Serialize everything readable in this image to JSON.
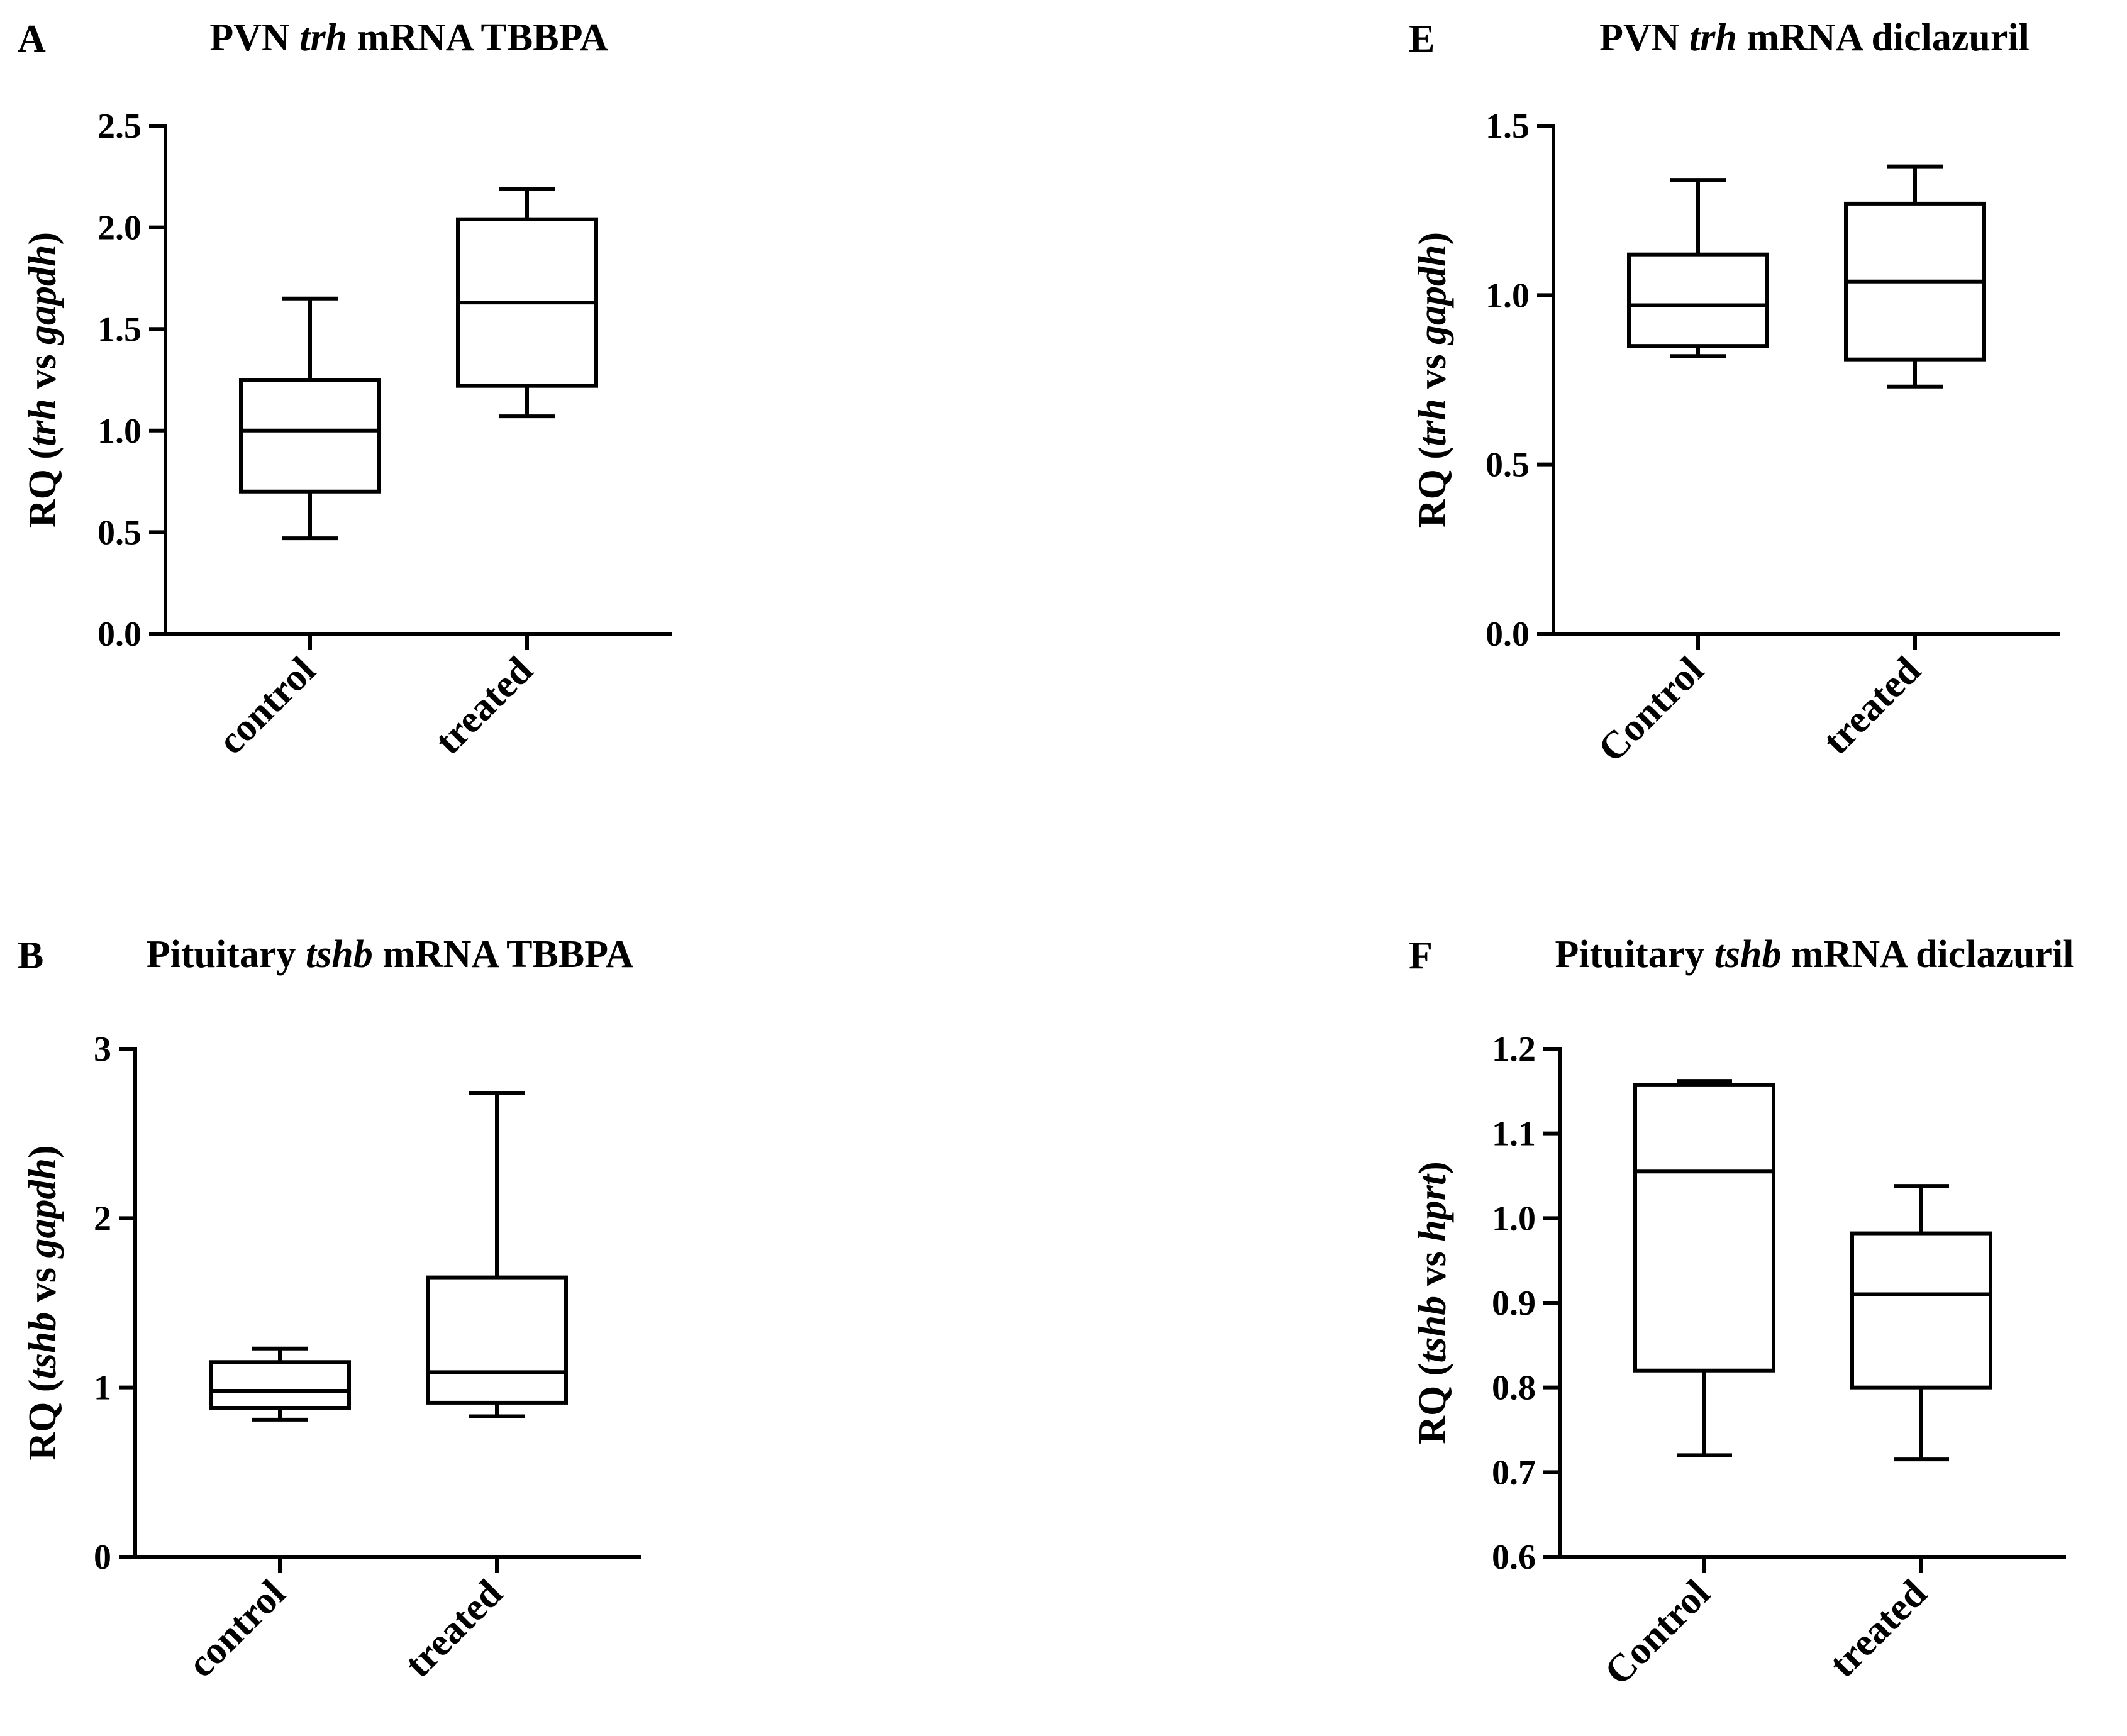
{
  "figure": {
    "colors": {
      "ink": "#000000",
      "background": "#ffffff"
    }
  },
  "chart_data": [
    {
      "panel": "A",
      "type": "boxplot",
      "title": {
        "pre": "PVN ",
        "italic": "trh",
        "post": " mRNA TBBPA"
      },
      "ylabel": {
        "pre": "RQ (",
        "italic1": "trh",
        "mid": " vs ",
        "italic2": "gapdh",
        "post": ")"
      },
      "ylim": [
        0,
        2.5
      ],
      "yticks": [
        0.0,
        0.5,
        1.0,
        1.5,
        2.0,
        2.5
      ],
      "tick_decimals": 1,
      "categories": [
        "control",
        "treated"
      ],
      "boxes": [
        {
          "min": 0.47,
          "q1": 0.7,
          "median": 1.0,
          "q3": 1.25,
          "max": 1.65
        },
        {
          "min": 1.07,
          "q1": 1.22,
          "median": 1.63,
          "q3": 2.04,
          "max": 2.19
        }
      ]
    },
    {
      "panel": "E",
      "type": "boxplot",
      "title": {
        "pre": "PVN ",
        "italic": "trh",
        "post": " mRNA diclazuril"
      },
      "ylabel": {
        "pre": "RQ (",
        "italic1": "trh",
        "mid": " vs ",
        "italic2": "gapdh",
        "post": ")"
      },
      "ylim": [
        0,
        1.5
      ],
      "yticks": [
        0.0,
        0.5,
        1.0,
        1.5
      ],
      "tick_decimals": 1,
      "categories": [
        "Control",
        "treated"
      ],
      "boxes": [
        {
          "min": 0.82,
          "q1": 0.85,
          "median": 0.97,
          "q3": 1.12,
          "max": 1.34
        },
        {
          "min": 0.73,
          "q1": 0.81,
          "median": 1.04,
          "q3": 1.27,
          "max": 1.38
        }
      ]
    },
    {
      "panel": "B",
      "type": "boxplot",
      "title": {
        "pre": "Pituitary ",
        "italic": "tshb",
        "post": " mRNA TBBPA"
      },
      "ylabel": {
        "pre": "RQ (",
        "italic1": "tshb",
        "mid": " vs ",
        "italic2": "gapdh",
        "post": ")"
      },
      "ylim": [
        0,
        3
      ],
      "yticks": [
        0,
        1,
        2,
        3
      ],
      "tick_decimals": 0,
      "categories": [
        "control",
        "treated"
      ],
      "boxes": [
        {
          "min": 0.81,
          "q1": 0.88,
          "median": 0.98,
          "q3": 1.15,
          "max": 1.23
        },
        {
          "min": 0.83,
          "q1": 0.91,
          "median": 1.09,
          "q3": 1.65,
          "max": 2.74
        }
      ]
    },
    {
      "panel": "F",
      "type": "boxplot",
      "title": {
        "pre": "Pituitary ",
        "italic": "tshb",
        "post": " mRNA diclazuril"
      },
      "ylabel": {
        "pre": "RQ (",
        "italic1": "tshb",
        "mid": " vs ",
        "italic2": "hprt",
        "post": ")"
      },
      "ylim": [
        0.6,
        1.2
      ],
      "yticks": [
        0.6,
        0.7,
        0.8,
        0.9,
        1.0,
        1.1,
        1.2
      ],
      "tick_decimals": 1,
      "categories": [
        "Control",
        "treated"
      ],
      "boxes": [
        {
          "min": 0.72,
          "q1": 0.82,
          "median": 1.055,
          "q3": 1.157,
          "max": 1.162
        },
        {
          "min": 0.715,
          "q1": 0.8,
          "median": 0.91,
          "q3": 0.982,
          "max": 1.038
        }
      ]
    }
  ]
}
